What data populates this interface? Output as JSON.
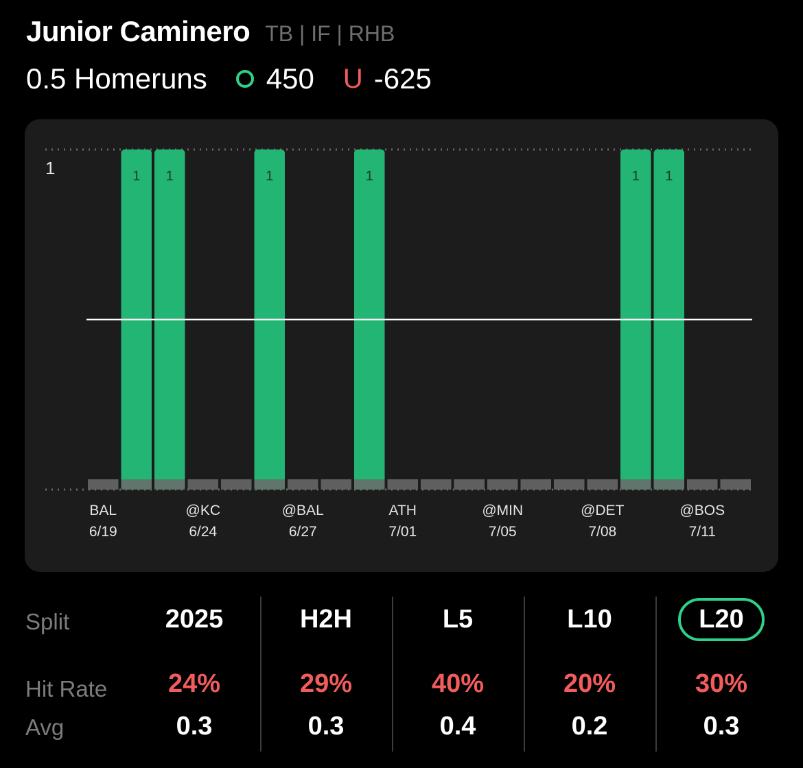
{
  "player": {
    "name": "Junior Caminero",
    "meta": "TB | IF | RHB"
  },
  "prop": {
    "line_label": "0.5 Homeruns",
    "over_odds": "450",
    "under_label": "U",
    "under_odds": "-625"
  },
  "colors": {
    "accent_green": "#22b573",
    "over_green": "#2fd18a",
    "under_red": "#f25c5c",
    "miss_gray": "#6b6b6b",
    "card_bg": "#1c1c1c"
  },
  "chart_data": {
    "type": "bar",
    "y_tick_label": "1",
    "ylim": [
      0,
      1
    ],
    "threshold": 0.5,
    "games": 20,
    "values": [
      0,
      1,
      1,
      0,
      0,
      1,
      0,
      0,
      1,
      0,
      0,
      0,
      0,
      0,
      0,
      0,
      1,
      1,
      0,
      0
    ],
    "x_labels": [
      {
        "index": 0,
        "team": "BAL",
        "date": "6/19"
      },
      {
        "index": 3,
        "team": "@KC",
        "date": "6/24"
      },
      {
        "index": 6,
        "team": "@BAL",
        "date": "6/27"
      },
      {
        "index": 9,
        "team": "ATH",
        "date": "7/01"
      },
      {
        "index": 12,
        "team": "@MIN",
        "date": "7/05"
      },
      {
        "index": 15,
        "team": "@DET",
        "date": "7/08"
      },
      {
        "index": 18,
        "team": "@BOS",
        "date": "7/11"
      }
    ]
  },
  "splits": {
    "split_label": "Split",
    "hit_rate_label": "Hit Rate",
    "avg_label": "Avg",
    "columns": [
      {
        "name": "2025",
        "hit_rate": "24%",
        "avg": "0.3",
        "active": false
      },
      {
        "name": "H2H",
        "hit_rate": "29%",
        "avg": "0.3",
        "active": false
      },
      {
        "name": "L5",
        "hit_rate": "40%",
        "avg": "0.4",
        "active": false
      },
      {
        "name": "L10",
        "hit_rate": "20%",
        "avg": "0.2",
        "active": false
      },
      {
        "name": "L20",
        "hit_rate": "30%",
        "avg": "0.3",
        "active": true
      }
    ]
  }
}
